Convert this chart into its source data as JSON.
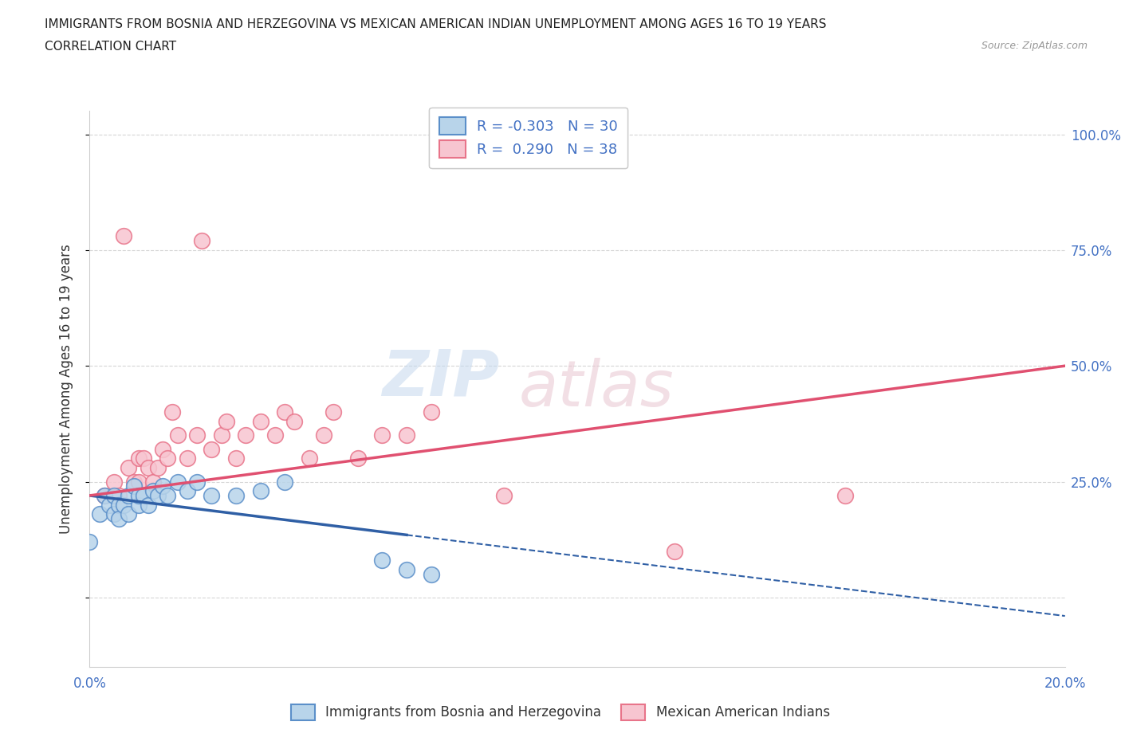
{
  "title_line1": "IMMIGRANTS FROM BOSNIA AND HERZEGOVINA VS MEXICAN AMERICAN INDIAN UNEMPLOYMENT AMONG AGES 16 TO 19 YEARS",
  "title_line2": "CORRELATION CHART",
  "source_text": "Source: ZipAtlas.com",
  "ylabel": "Unemployment Among Ages 16 to 19 years",
  "series1_name": "Immigrants from Bosnia and Herzegovina",
  "series1_color": "#b8d4ea",
  "series1_edge_color": "#5b8fc9",
  "series1_line_color": "#2f5fa5",
  "series1_R": -0.303,
  "series1_N": 30,
  "series2_name": "Mexican American Indians",
  "series2_color": "#f7c5d0",
  "series2_edge_color": "#e8748a",
  "series2_line_color": "#e05070",
  "series2_R": 0.29,
  "series2_N": 38,
  "xlim": [
    0.0,
    0.2
  ],
  "ylim": [
    -0.15,
    1.05
  ],
  "yticks": [
    0.0,
    0.25,
    0.5,
    0.75,
    1.0
  ],
  "ytick_labels": [
    "",
    "25.0%",
    "50.0%",
    "75.0%",
    "100.0%"
  ],
  "xticks": [
    0.0,
    0.05,
    0.1,
    0.15,
    0.2
  ],
  "xtick_labels": [
    "0.0%",
    "",
    "",
    "",
    "20.0%"
  ],
  "grid_color": "#cccccc",
  "background_color": "#ffffff",
  "watermark_zip": "ZIP",
  "watermark_atlas": "atlas",
  "series1_x": [
    0.0,
    0.002,
    0.003,
    0.004,
    0.005,
    0.005,
    0.006,
    0.006,
    0.007,
    0.008,
    0.008,
    0.009,
    0.01,
    0.01,
    0.011,
    0.012,
    0.013,
    0.014,
    0.015,
    0.016,
    0.018,
    0.02,
    0.022,
    0.025,
    0.03,
    0.035,
    0.04,
    0.06,
    0.065,
    0.07
  ],
  "series1_y": [
    0.12,
    0.18,
    0.22,
    0.2,
    0.18,
    0.22,
    0.2,
    0.17,
    0.2,
    0.22,
    0.18,
    0.24,
    0.2,
    0.22,
    0.22,
    0.2,
    0.23,
    0.22,
    0.24,
    0.22,
    0.25,
    0.23,
    0.25,
    0.22,
    0.22,
    0.23,
    0.25,
    0.08,
    0.06,
    0.05
  ],
  "series2_x": [
    0.003,
    0.005,
    0.006,
    0.007,
    0.008,
    0.009,
    0.01,
    0.01,
    0.011,
    0.012,
    0.013,
    0.014,
    0.015,
    0.016,
    0.017,
    0.018,
    0.02,
    0.022,
    0.023,
    0.025,
    0.027,
    0.028,
    0.03,
    0.032,
    0.035,
    0.038,
    0.04,
    0.042,
    0.045,
    0.048,
    0.05,
    0.055,
    0.06,
    0.065,
    0.07,
    0.085,
    0.12,
    0.155
  ],
  "series2_y": [
    0.22,
    0.25,
    0.22,
    0.78,
    0.28,
    0.25,
    0.25,
    0.3,
    0.3,
    0.28,
    0.25,
    0.28,
    0.32,
    0.3,
    0.4,
    0.35,
    0.3,
    0.35,
    0.77,
    0.32,
    0.35,
    0.38,
    0.3,
    0.35,
    0.38,
    0.35,
    0.4,
    0.38,
    0.3,
    0.35,
    0.4,
    0.3,
    0.35,
    0.35,
    0.4,
    0.22,
    0.1,
    0.22
  ],
  "trendline1_x0": 0.0,
  "trendline1_y0": 0.22,
  "trendline1_x1": 0.065,
  "trendline1_y1": 0.135,
  "trendline1_dash_x0": 0.065,
  "trendline1_dash_y0": 0.135,
  "trendline1_dash_x1": 0.2,
  "trendline1_dash_y1": -0.04,
  "trendline2_x0": 0.0,
  "trendline2_y0": 0.22,
  "trendline2_x1": 0.2,
  "trendline2_y1": 0.5
}
